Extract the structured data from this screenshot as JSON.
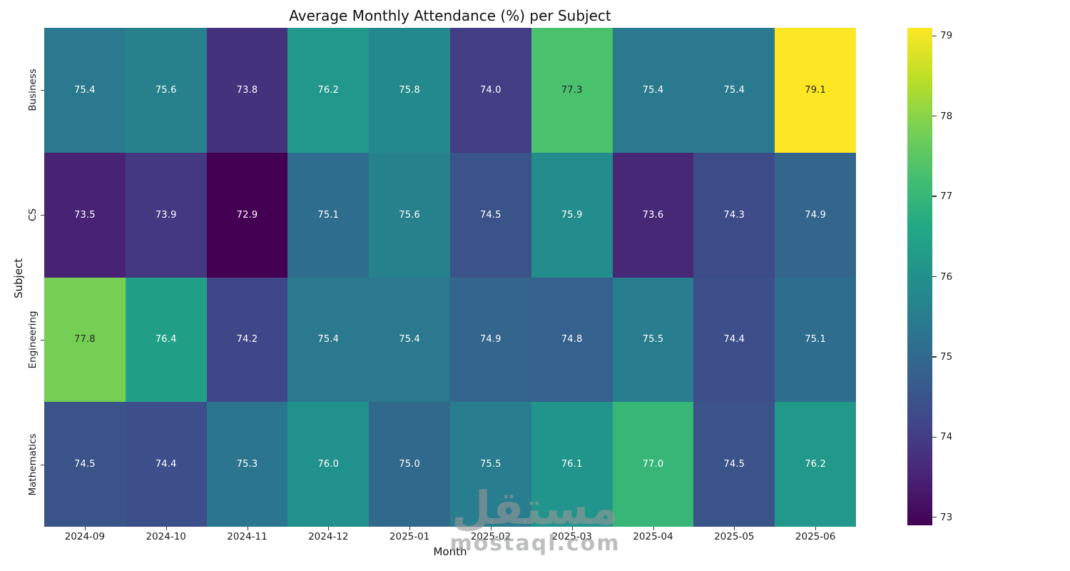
{
  "figure": {
    "title": "Average Monthly Attendance (%) per Subject",
    "xlabel": "Month",
    "ylabel": "Subject"
  },
  "watermark": {
    "logo_text": "مستقل",
    "site_text": "mostaql.com"
  },
  "chart_data": {
    "type": "heatmap",
    "title": "Average Monthly Attendance (%) per Subject",
    "xlabel": "Month",
    "ylabel": "Subject",
    "x_categories": [
      "2024-09",
      "2024-10",
      "2024-11",
      "2024-12",
      "2025-01",
      "2025-02",
      "2025-03",
      "2025-04",
      "2025-05",
      "2025-06"
    ],
    "y_categories": [
      "Business",
      "CS",
      "Engineering",
      "Mathematics"
    ],
    "series": [
      {
        "name": "Business",
        "values": [
          75.4,
          75.6,
          73.8,
          76.2,
          75.8,
          74.0,
          77.3,
          75.4,
          75.4,
          79.1
        ]
      },
      {
        "name": "CS",
        "values": [
          73.5,
          73.9,
          72.9,
          75.1,
          75.6,
          74.5,
          75.9,
          73.6,
          74.3,
          74.9
        ]
      },
      {
        "name": "Engineering",
        "values": [
          77.8,
          76.4,
          74.2,
          75.4,
          75.4,
          74.9,
          74.8,
          75.5,
          74.4,
          75.1
        ]
      },
      {
        "name": "Mathematics",
        "values": [
          74.5,
          74.4,
          75.3,
          76.0,
          75.0,
          75.5,
          76.1,
          77.0,
          74.5,
          76.2
        ]
      }
    ],
    "vmin": 72.9,
    "vmax": 79.1,
    "colormap": "viridis",
    "colorbar_ticks": [
      79,
      78,
      77,
      76,
      75,
      74,
      73
    ],
    "value_decimals": 1,
    "annotation_colors": {
      "dark_text": "#262626",
      "light_text": "#ffffff"
    },
    "grid": false,
    "legend": "colorbar-right"
  }
}
